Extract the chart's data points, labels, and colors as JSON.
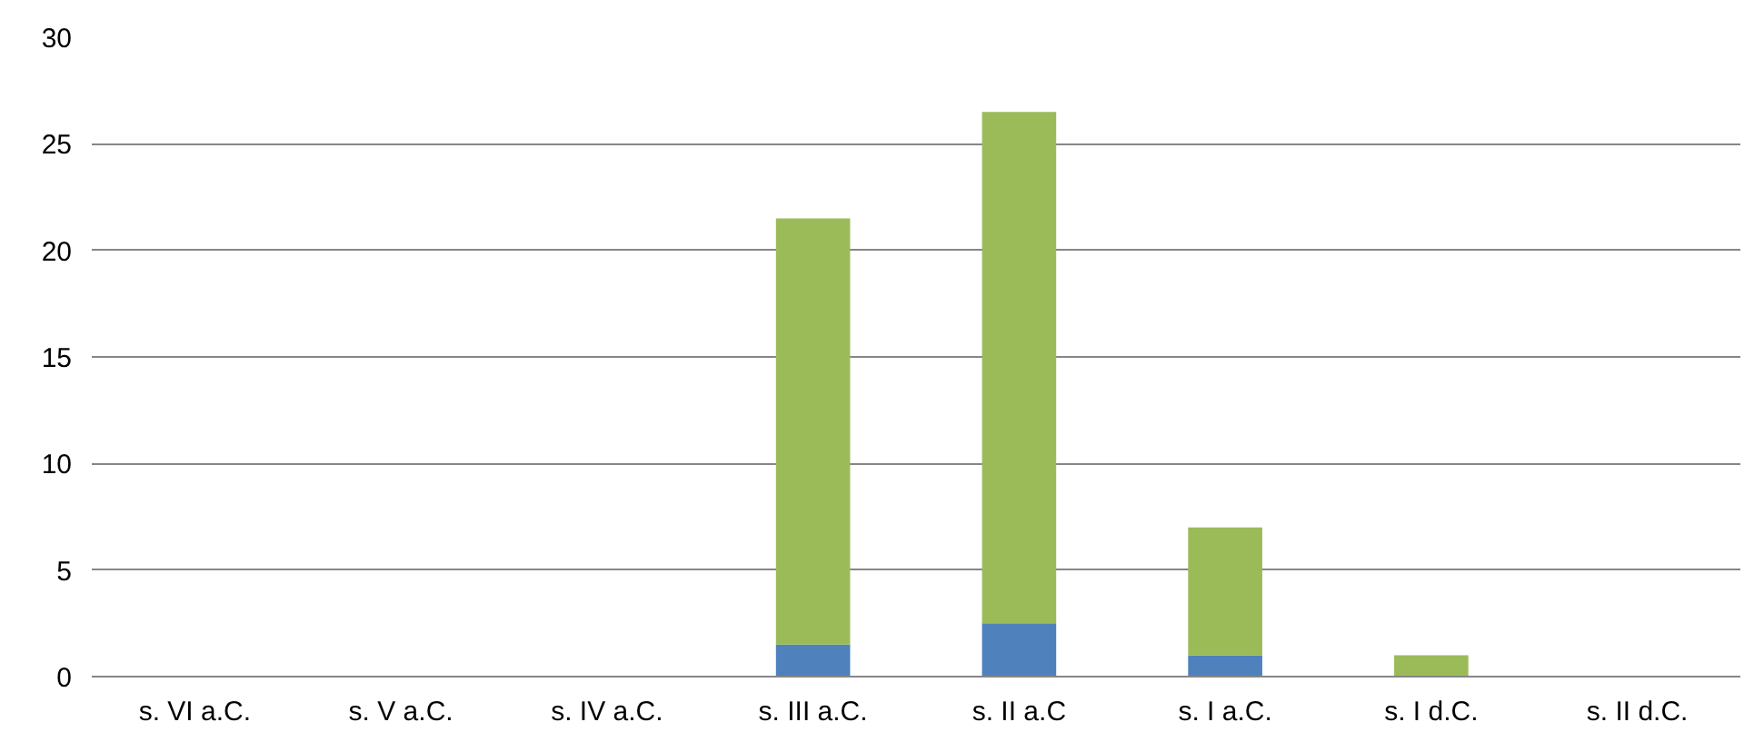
{
  "chart_data": {
    "type": "bar",
    "stacked": true,
    "categories": [
      "s. VI a.C.",
      "s. V a.C.",
      "s. IV a.C.",
      "s. III a.C.",
      "s. II a.C",
      "s. I a.C.",
      "s. I d.C.",
      "s. II d.C."
    ],
    "series": [
      {
        "color": "#4f81bd",
        "values": [
          0,
          0,
          0,
          1.5,
          2.5,
          1,
          0,
          0
        ]
      },
      {
        "color": "#9bbb59",
        "values": [
          0,
          0,
          0,
          20,
          24,
          6,
          1,
          0
        ]
      }
    ],
    "ylim": [
      0,
      30
    ],
    "yticks": [
      0,
      5,
      10,
      15,
      20,
      25,
      30
    ],
    "grid": "y"
  }
}
